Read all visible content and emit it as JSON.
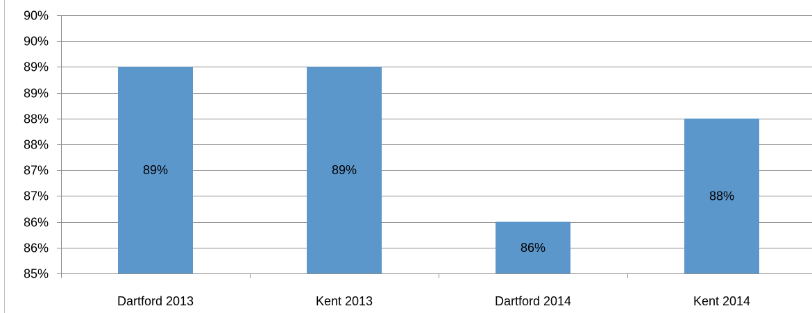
{
  "chart_data": {
    "type": "bar",
    "categories": [
      "Dartford 2013",
      "Kent 2013",
      "Dartford 2014",
      "Kent 2014"
    ],
    "values": [
      89,
      89,
      86,
      88
    ],
    "data_labels": [
      "89%",
      "89%",
      "86%",
      "88%"
    ],
    "y_tick_values": [
      85,
      85.5,
      86,
      86.5,
      87,
      87.5,
      88,
      88.5,
      89,
      89.5,
      90
    ],
    "y_tick_labels": [
      "85%",
      "86%",
      "86%",
      "87%",
      "87%",
      "88%",
      "88%",
      "89%",
      "89%",
      "90%",
      "90%"
    ],
    "ylim": [
      85,
      90
    ],
    "grid": true,
    "legend": "none",
    "title": "",
    "xlabel": "",
    "ylabel": "",
    "colors": {
      "bar": "#5b97cb",
      "grid": "#8c8c8c",
      "axis": "#8c8c8c",
      "text": "#000000"
    }
  }
}
